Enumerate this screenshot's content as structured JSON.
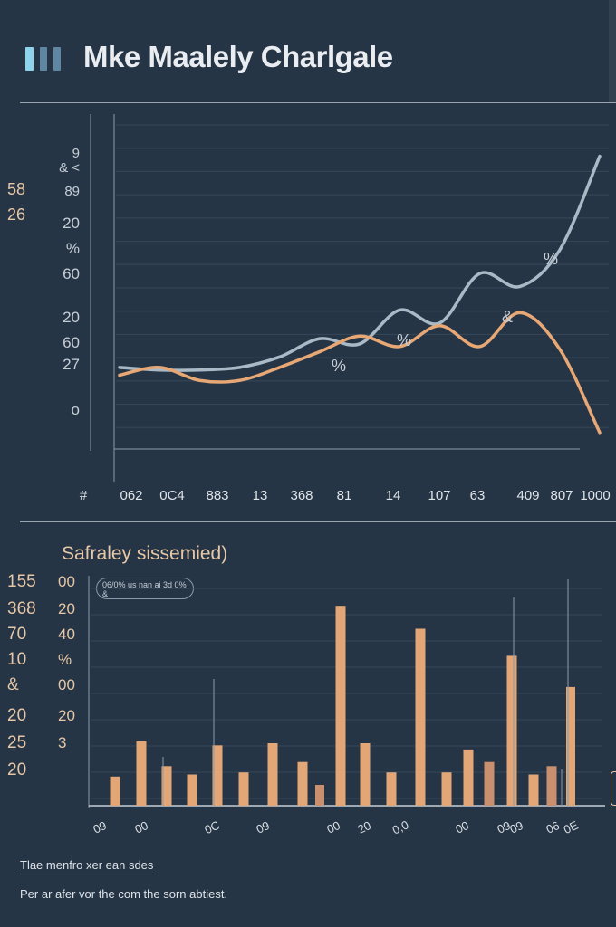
{
  "header": {
    "title": "Mke Maalely Charlgale",
    "icon": "bar-chart-icon",
    "icon_colors": [
      "#8fd3ea",
      "#5f87a3",
      "#5f87a3"
    ]
  },
  "colors": {
    "background": "#263545",
    "series_gray": "#a9b9c6",
    "series_orange": "#e7a876",
    "bar": "#e3a676",
    "bar_muted": "#c99070"
  },
  "chart_data": [
    {
      "type": "line",
      "title": "Mke Maalely Charlgale",
      "y_tick_labels_outer": [
        "58",
        "26",
        "",
        "",
        "",
        "",
        ""
      ],
      "y_tick_labels_inner": [
        "9",
        "& <",
        "89",
        "20",
        "%",
        "60",
        "20",
        "60",
        "27",
        "o"
      ],
      "x_tick_labels": [
        "#",
        "062",
        "0C4",
        "883",
        "13",
        "368",
        "81",
        "14",
        "107",
        "63",
        "409",
        "807",
        "1000"
      ],
      "x": [
        0,
        1,
        2,
        3,
        4,
        5,
        6,
        7,
        8,
        9,
        10,
        11,
        12
      ],
      "series": [
        {
          "color": "#a9b9c6",
          "values": [
            7,
            6,
            6,
            7,
            11,
            18,
            16,
            29,
            24,
            43,
            38,
            52,
            88
          ]
        },
        {
          "color": "#e7a876",
          "values": [
            4,
            7,
            2,
            2,
            7,
            13,
            19,
            15,
            23,
            15,
            28,
            14,
            -18
          ]
        }
      ],
      "point_labels": [
        "%",
        "%",
        "&",
        "%"
      ],
      "grid": true
    },
    {
      "type": "bar",
      "subtitle": "Safraley sissemied)",
      "legend_text": "06/0% us nan ai 3d 0% &",
      "y_tick_labels_left": [
        "155",
        "368",
        "70",
        "10",
        "&",
        "20",
        "25",
        "20"
      ],
      "y_tick_labels_right": [
        "00",
        "20",
        "40",
        "%",
        "00",
        "20",
        "3",
        ""
      ],
      "x_tick_labels": [
        "09",
        "00 ",
        "0C",
        "09",
        "00",
        "20",
        "0,0",
        "00",
        "09",
        "09",
        "06",
        "0E"
      ],
      "values": [
        14,
        31,
        19,
        15,
        29,
        16,
        30,
        21,
        10,
        96,
        30,
        16,
        85,
        16,
        27,
        21,
        72,
        15,
        19,
        57
      ],
      "grid": true
    }
  ],
  "footnotes": {
    "line1": "Tlae menfro xer ean sdes",
    "line2": "Per ar afer vor the com the sorn abtiest."
  }
}
